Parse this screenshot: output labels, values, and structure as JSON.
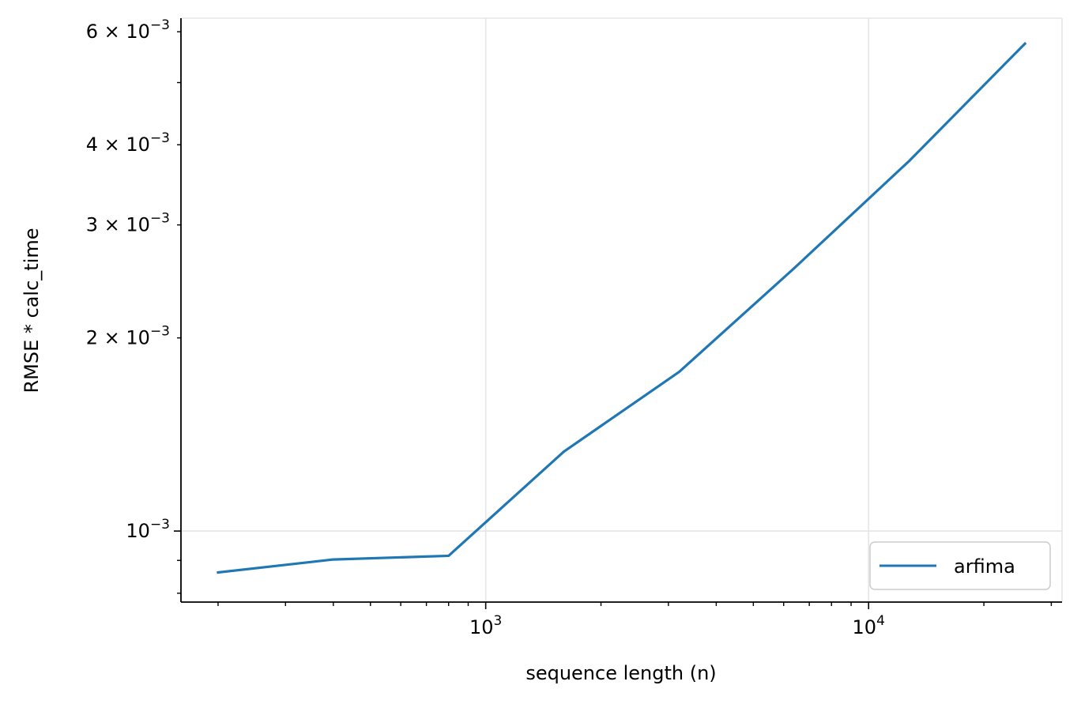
{
  "chart_data": {
    "type": "line",
    "title": "",
    "xlabel": "sequence length (n)",
    "ylabel": "RMSE * calc_time",
    "xscale": "log",
    "yscale": "log",
    "xlim": [
      160,
      32000
    ],
    "ylim": [
      0.000775,
      0.0063
    ],
    "grid": true,
    "legend": {
      "placement": "lower-right",
      "entries": [
        "arfima"
      ]
    },
    "x_major_ticks": [
      {
        "value": 1000,
        "mantissa": "10",
        "exponent": "3"
      },
      {
        "value": 10000,
        "mantissa": "10",
        "exponent": "4"
      }
    ],
    "y_major_ticks": [
      {
        "value": 0.001,
        "label": "10",
        "exponent": "−3"
      }
    ],
    "y_minor_labeled_ticks": [
      {
        "value": 0.002,
        "prefix": "2 × 10",
        "exponent": "−3"
      },
      {
        "value": 0.003,
        "prefix": "3 × 10",
        "exponent": "−3"
      },
      {
        "value": 0.004,
        "prefix": "4 × 10",
        "exponent": "−3"
      },
      {
        "value": 0.006,
        "prefix": "6 × 10",
        "exponent": "−3"
      }
    ],
    "series": [
      {
        "name": "arfima",
        "color": "#1f77b4",
        "x": [
          200,
          400,
          800,
          1600,
          3200,
          6400,
          12800,
          25600
        ],
        "y": [
          0.000862,
          0.000903,
          0.000915,
          0.00133,
          0.00177,
          0.00257,
          0.00378,
          0.00575
        ]
      }
    ]
  }
}
